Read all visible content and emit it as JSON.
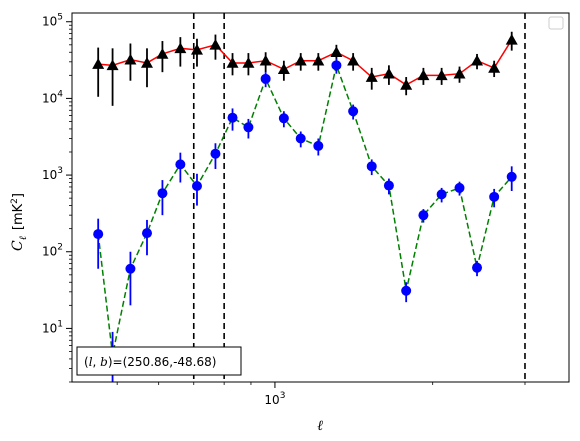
{
  "chart_data": {
    "type": "scatter",
    "title": "",
    "xlabel": "ℓ",
    "ylabel": "C_ℓ [mK²]",
    "ylabel_parts": {
      "symbol": "C",
      "subscript": "ℓ",
      "unit_open": "[mK",
      "unit_sup": "2",
      "unit_close": "]"
    },
    "xscale": "log",
    "yscale": "log",
    "xlim": [
      410,
      3640
    ],
    "ylim": [
      2,
      130000
    ],
    "x_tick_labels": [
      {
        "value": 1000,
        "base": "10",
        "exp": "3"
      }
    ],
    "y_tick_labels": [
      {
        "value": 10,
        "base": "10",
        "exp": "1"
      },
      {
        "value": 100,
        "base": "10",
        "exp": "2"
      },
      {
        "value": 1000,
        "base": "10",
        "exp": "3"
      },
      {
        "value": 10000,
        "base": "10",
        "exp": "4"
      },
      {
        "value": 100000,
        "base": "10",
        "exp": "5"
      }
    ],
    "legend": {
      "placement": "top-right",
      "entries": []
    },
    "annotation": {
      "text": "(l, b)=(250.86,-48.68)",
      "var1": "l",
      "var2": "b",
      "values": "=(250.86,-48.68)",
      "placement": "bottom-left"
    },
    "vlines": [
      700,
      800,
      3000
    ],
    "series": [
      {
        "marker": "triangle",
        "color": "#000000",
        "line_color": "#ff0000",
        "linestyle": "solid",
        "points": [
          {
            "x": 460,
            "y": 28000,
            "ylo": 10500,
            "yhi": 46000
          },
          {
            "x": 490,
            "y": 27000,
            "ylo": 8000,
            "yhi": 45000
          },
          {
            "x": 530,
            "y": 32000,
            "ylo": 17000,
            "yhi": 52000
          },
          {
            "x": 570,
            "y": 29000,
            "ylo": 14000,
            "yhi": 45000
          },
          {
            "x": 610,
            "y": 38000,
            "ylo": 22000,
            "yhi": 56000
          },
          {
            "x": 660,
            "y": 45000,
            "ylo": 26000,
            "yhi": 63000
          },
          {
            "x": 710,
            "y": 43000,
            "ylo": 26000,
            "yhi": 60000
          },
          {
            "x": 770,
            "y": 50000,
            "ylo": 32000,
            "yhi": 68000
          },
          {
            "x": 830,
            "y": 29000,
            "ylo": 20000,
            "yhi": 39000
          },
          {
            "x": 890,
            "y": 29000,
            "ylo": 20000,
            "yhi": 39000
          },
          {
            "x": 960,
            "y": 31000,
            "ylo": 22000,
            "yhi": 40000
          },
          {
            "x": 1040,
            "y": 24000,
            "ylo": 17000,
            "yhi": 31000
          },
          {
            "x": 1120,
            "y": 31000,
            "ylo": 23000,
            "yhi": 39000
          },
          {
            "x": 1210,
            "y": 31000,
            "ylo": 23000,
            "yhi": 39000
          },
          {
            "x": 1310,
            "y": 40000,
            "ylo": 30000,
            "yhi": 50000
          },
          {
            "x": 1410,
            "y": 31000,
            "ylo": 23000,
            "yhi": 39000
          },
          {
            "x": 1530,
            "y": 19000,
            "ylo": 13000,
            "yhi": 25000
          },
          {
            "x": 1650,
            "y": 21000,
            "ylo": 15000,
            "yhi": 27000
          },
          {
            "x": 1780,
            "y": 15000,
            "ylo": 11000,
            "yhi": 19000
          },
          {
            "x": 1920,
            "y": 20000,
            "ylo": 15000,
            "yhi": 25000
          },
          {
            "x": 2080,
            "y": 20000,
            "ylo": 15000,
            "yhi": 25000
          },
          {
            "x": 2250,
            "y": 21000,
            "ylo": 16000,
            "yhi": 26000
          },
          {
            "x": 2430,
            "y": 31000,
            "ylo": 24000,
            "yhi": 38000
          },
          {
            "x": 2620,
            "y": 25000,
            "ylo": 19000,
            "yhi": 31000
          },
          {
            "x": 2830,
            "y": 58000,
            "ylo": 42000,
            "yhi": 74000
          }
        ]
      },
      {
        "marker": "circle",
        "color": "#0000ff",
        "line_color": "#008000",
        "linestyle": "dashed",
        "points": [
          {
            "x": 460,
            "y": 170,
            "ylo": 60,
            "yhi": 270
          },
          {
            "x": 490,
            "y": 4.5,
            "ylo": 1.5,
            "yhi": 9
          },
          {
            "x": 530,
            "y": 60,
            "ylo": 20,
            "yhi": 100
          },
          {
            "x": 570,
            "y": 175,
            "ylo": 90,
            "yhi": 260
          },
          {
            "x": 610,
            "y": 580,
            "ylo": 300,
            "yhi": 860
          },
          {
            "x": 660,
            "y": 1380,
            "ylo": 800,
            "yhi": 1960
          },
          {
            "x": 710,
            "y": 720,
            "ylo": 400,
            "yhi": 1040
          },
          {
            "x": 770,
            "y": 1900,
            "ylo": 1200,
            "yhi": 2600
          },
          {
            "x": 830,
            "y": 5600,
            "ylo": 3800,
            "yhi": 7400
          },
          {
            "x": 890,
            "y": 4200,
            "ylo": 3000,
            "yhi": 5400
          },
          {
            "x": 960,
            "y": 18000,
            "ylo": 14000,
            "yhi": 22000
          },
          {
            "x": 1040,
            "y": 5500,
            "ylo": 4200,
            "yhi": 6800
          },
          {
            "x": 1120,
            "y": 3000,
            "ylo": 2300,
            "yhi": 3700
          },
          {
            "x": 1210,
            "y": 2400,
            "ylo": 1800,
            "yhi": 3000
          },
          {
            "x": 1310,
            "y": 27000,
            "ylo": 21000,
            "yhi": 33000
          },
          {
            "x": 1410,
            "y": 6800,
            "ylo": 5300,
            "yhi": 8300
          },
          {
            "x": 1530,
            "y": 1300,
            "ylo": 1000,
            "yhi": 1600
          },
          {
            "x": 1650,
            "y": 730,
            "ylo": 560,
            "yhi": 900
          },
          {
            "x": 1780,
            "y": 31,
            "ylo": 22,
            "yhi": 40
          },
          {
            "x": 1920,
            "y": 300,
            "ylo": 240,
            "yhi": 360
          },
          {
            "x": 2080,
            "y": 560,
            "ylo": 440,
            "yhi": 680
          },
          {
            "x": 2250,
            "y": 680,
            "ylo": 540,
            "yhi": 820
          },
          {
            "x": 2430,
            "y": 62,
            "ylo": 48,
            "yhi": 76
          },
          {
            "x": 2620,
            "y": 520,
            "ylo": 380,
            "yhi": 660
          },
          {
            "x": 2830,
            "y": 950,
            "ylo": 620,
            "yhi": 1300
          }
        ]
      }
    ]
  }
}
